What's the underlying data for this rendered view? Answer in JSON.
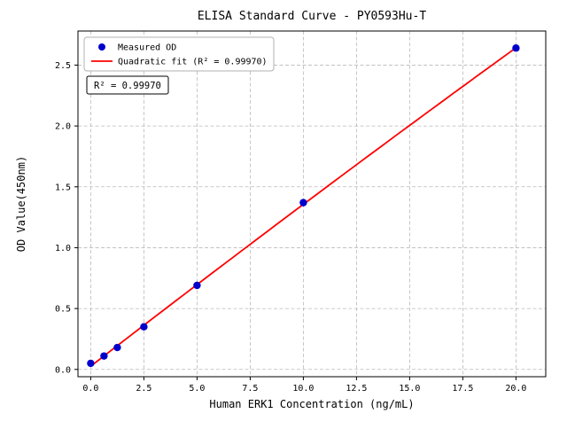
{
  "chart_data": {
    "type": "scatter",
    "title": "ELISA Standard Curve - PY0593Hu-T",
    "xlabel": "Human ERK1 Concentration (ng/mL)",
    "ylabel": "OD Value(450nm)",
    "xlim": [
      -0.6,
      21.4
    ],
    "ylim": [
      -0.06,
      2.78
    ],
    "x_ticks": [
      0,
      2.5,
      5,
      7.5,
      10,
      12.5,
      15,
      17.5,
      20
    ],
    "x_tick_labels": [
      "0.0",
      "2.5",
      "5.0",
      "7.5",
      "10.0",
      "12.5",
      "15.0",
      "17.5",
      "20.0"
    ],
    "y_ticks": [
      0,
      0.5,
      1,
      1.5,
      2,
      2.5
    ],
    "y_tick_labels": [
      "0.0",
      "0.5",
      "1.0",
      "1.5",
      "2.0",
      "2.5"
    ],
    "grid": true,
    "grid_style": "dashed",
    "series": [
      {
        "name": "Measured OD",
        "type": "scatter",
        "color": "#0000cd",
        "x": [
          0,
          0.625,
          1.25,
          2.5,
          5,
          10,
          20
        ],
        "y": [
          0.05,
          0.11,
          0.18,
          0.35,
          0.69,
          1.37,
          2.64
        ]
      },
      {
        "name": "Quadratic fit (R² = 0.99970)",
        "type": "line",
        "color": "#ff0000",
        "fit_coefficients": {
          "a": -0.000216,
          "b": 0.13514,
          "c": 0.02628
        },
        "x_range": [
          0,
          20
        ]
      }
    ],
    "legend": {
      "position": "upper left",
      "entries": [
        "Measured OD",
        "Quadratic fit (R² = 0.99970)"
      ]
    },
    "annotation": {
      "text": "R² = 0.99970"
    },
    "r_squared": 0.9997,
    "colors": {
      "scatter": "#0000cd",
      "fit_line": "#ff0000",
      "grid": "#b9b9b9",
      "axis": "#000000",
      "text": "#000000",
      "background": "#ffffff",
      "legend_border": "#b0b0b0"
    }
  }
}
